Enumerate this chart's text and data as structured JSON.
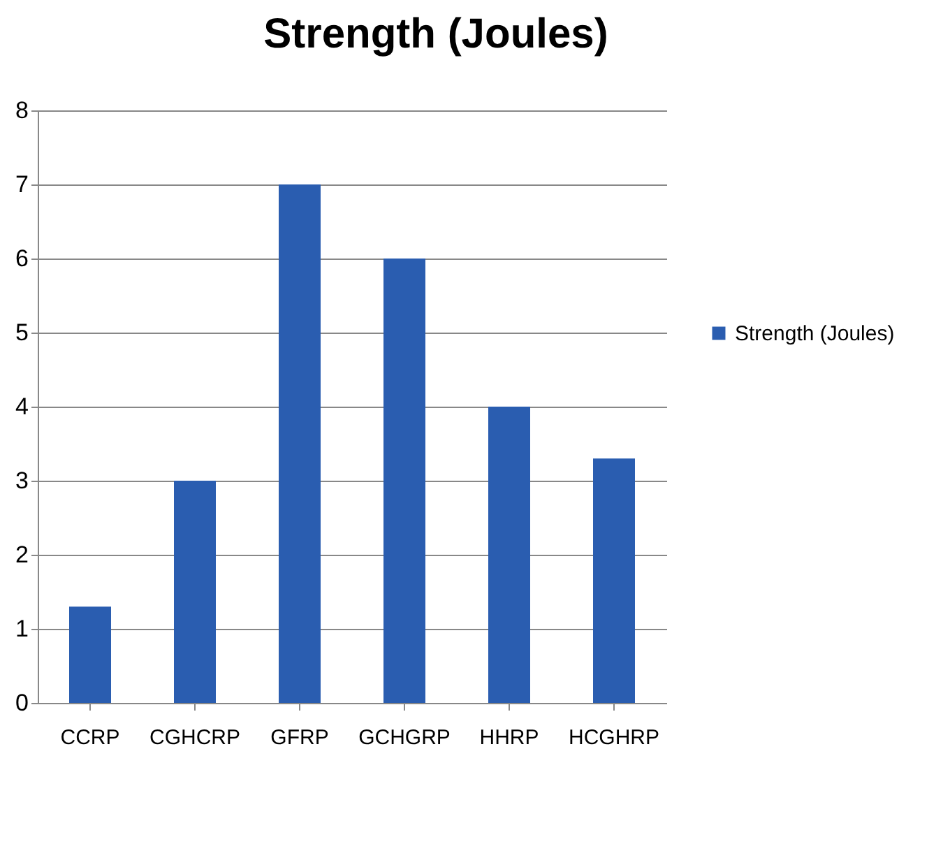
{
  "chart_data": {
    "type": "bar",
    "title": "Strength (Joules)",
    "categories": [
      "CCRP",
      "CGHCRP",
      "GFRP",
      "GCHGRP",
      "HHRP",
      "HCGHRP"
    ],
    "series": [
      {
        "name": "Strength (Joules)",
        "color": "#2a5db0",
        "values": [
          1.3,
          3,
          7,
          6,
          4,
          3.3
        ]
      }
    ],
    "ylim": [
      0,
      8
    ],
    "yticks": [
      0,
      1,
      2,
      3,
      4,
      5,
      6,
      7,
      8
    ],
    "grid": "y",
    "legend": "right"
  }
}
